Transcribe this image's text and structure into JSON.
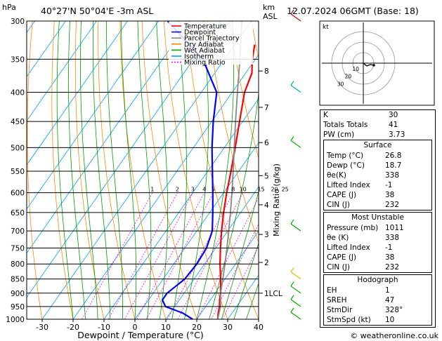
{
  "header": {
    "pressure_unit": "hPa",
    "location": "40°27'N  50°04'E  -3m  ASL",
    "km_unit": "km",
    "asl_label": "ASL",
    "valid_time": "12.07.2024  06GMT  (Base: 18)"
  },
  "chart_data": {
    "type": "line",
    "title": "",
    "xlabel": "Dewpoint / Temperature (°C)",
    "ylabel": "hPa",
    "xlim": [
      -35,
      40
    ],
    "ylim": [
      1000,
      300
    ],
    "y_scale": "log",
    "pressure_ticks": [
      300,
      350,
      400,
      450,
      500,
      550,
      600,
      650,
      700,
      750,
      800,
      850,
      900,
      950,
      1000
    ],
    "temperature_ticks": [
      -30,
      -20,
      -10,
      0,
      10,
      20,
      30,
      40
    ],
    "km_ticks": [
      {
        "label": "8",
        "p": 367
      },
      {
        "label": "7",
        "p": 425
      },
      {
        "label": "6",
        "p": 490
      },
      {
        "label": "5",
        "p": 560
      },
      {
        "label": "4",
        "p": 630
      },
      {
        "label": "3",
        "p": 710
      },
      {
        "label": "2",
        "p": 795
      },
      {
        "label": "1LCL",
        "p": 900
      }
    ],
    "mixing_ratio_label": "Mixing Ratio (g/kg)",
    "mixing_ratio_values": [
      "1",
      "2",
      "3",
      "4",
      "5",
      "8",
      "10",
      "15",
      "20",
      "25"
    ],
    "legend": {
      "placement": "top-left",
      "entries": [
        {
          "name": "Temperature",
          "color": "#ff0000"
        },
        {
          "name": "Dewpoint",
          "color": "#0000ff"
        },
        {
          "name": "Parcel Trajectory",
          "color": "#888888"
        },
        {
          "name": "Dry Adiabat",
          "color": "#ff8c00"
        },
        {
          "name": "Wet Adiabat",
          "color": "#00a000"
        },
        {
          "name": "Isotherm",
          "color": "#00a0ff"
        },
        {
          "name": "Mixing Ratio",
          "color": "#ff00ff"
        }
      ]
    },
    "series": [
      {
        "name": "Temperature",
        "color": "#ff0000",
        "points": [
          [
            1000,
            26.8
          ],
          [
            975,
            25.5
          ],
          [
            950,
            24.5
          ],
          [
            925,
            23.0
          ],
          [
            900,
            21.8
          ],
          [
            850,
            18.6
          ],
          [
            800,
            15.0
          ],
          [
            750,
            11.5
          ],
          [
            700,
            8.0
          ],
          [
            650,
            4.5
          ],
          [
            600,
            1.0
          ],
          [
            550,
            -2.5
          ],
          [
            500,
            -6.5
          ],
          [
            450,
            -11.0
          ],
          [
            400,
            -16.0
          ],
          [
            370,
            -18.0
          ],
          [
            350,
            -21.0
          ],
          [
            330,
            -23.5
          ]
        ]
      },
      {
        "name": "Dewpoint",
        "color": "#0000ff",
        "points": [
          [
            1000,
            18.7
          ],
          [
            975,
            14.0
          ],
          [
            950,
            7.0
          ],
          [
            925,
            4.5
          ],
          [
            900,
            4.5
          ],
          [
            850,
            7.0
          ],
          [
            800,
            7.5
          ],
          [
            750,
            7.0
          ],
          [
            700,
            5.0
          ],
          [
            650,
            1.0
          ],
          [
            600,
            -3.5
          ],
          [
            550,
            -8.5
          ],
          [
            500,
            -14.0
          ],
          [
            450,
            -19.5
          ],
          [
            400,
            -25.0
          ],
          [
            350,
            -37.0
          ],
          [
            300,
            -57.0
          ]
        ]
      },
      {
        "name": "Parcel Trajectory",
        "color": "#888888",
        "points": [
          [
            1000,
            26.8
          ],
          [
            950,
            24.8
          ],
          [
            900,
            21.8
          ],
          [
            850,
            19.3
          ],
          [
            800,
            16.6
          ],
          [
            750,
            13.6
          ],
          [
            700,
            10.3
          ],
          [
            650,
            6.7
          ],
          [
            600,
            2.7
          ],
          [
            550,
            -1.8
          ],
          [
            500,
            -6.8
          ],
          [
            450,
            -12.3
          ],
          [
            400,
            -18.3
          ],
          [
            350,
            -25.0
          ],
          [
            300,
            -33.0
          ]
        ]
      }
    ]
  },
  "hodograph": {
    "unit_label": "kt",
    "ring_labels": [
      "10",
      "20",
      "30"
    ]
  },
  "indices": {
    "rows": [
      {
        "label": "K",
        "value": "30"
      },
      {
        "label": "Totals Totals",
        "value": "41"
      },
      {
        "label": "PW (cm)",
        "value": "3.73"
      }
    ]
  },
  "surface": {
    "title": "Surface",
    "rows": [
      {
        "label": "Temp (°C)",
        "value": "26.8"
      },
      {
        "label": "Dewp (°C)",
        "value": "18.7"
      },
      {
        "label": "θe(K)",
        "value": "338"
      },
      {
        "label": "Lifted Index",
        "value": "-1"
      },
      {
        "label": "CAPE (J)",
        "value": "38"
      },
      {
        "label": "CIN (J)",
        "value": "232"
      }
    ]
  },
  "most_unstable": {
    "title": "Most Unstable",
    "rows": [
      {
        "label": "Pressure (mb)",
        "value": "1011"
      },
      {
        "label": "θe (K)",
        "value": "338"
      },
      {
        "label": "Lifted Index",
        "value": "-1"
      },
      {
        "label": "CAPE (J)",
        "value": "38"
      },
      {
        "label": "CIN (J)",
        "value": "232"
      }
    ]
  },
  "hodograph_table": {
    "title": "Hodograph",
    "rows": [
      {
        "label": "EH",
        "value": "1"
      },
      {
        "label": "SREH",
        "value": "47"
      },
      {
        "label": "StmDir",
        "value": "328°"
      },
      {
        "label": "StmSpd (kt)",
        "value": "10"
      }
    ]
  },
  "footer": {
    "copyright": "© weatheronline.co.uk"
  }
}
